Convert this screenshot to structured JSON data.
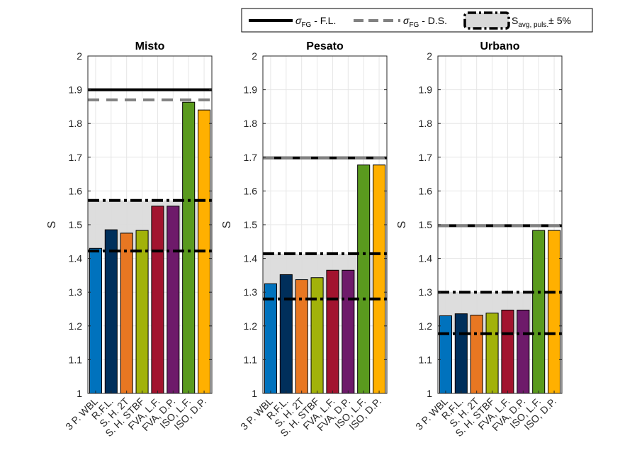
{
  "chart_data": [
    {
      "type": "bar",
      "title": "Misto",
      "ylabel": "S",
      "ylim": [
        1,
        2
      ],
      "yticks": [
        "1",
        "1.1",
        "1.2",
        "1.3",
        "1.4",
        "1.5",
        "1.6",
        "1.7",
        "1.8",
        "1.9",
        "2"
      ],
      "categories": [
        "3 P. WBL",
        "R.F.L.",
        "S. H. 2T",
        "S. H. STBF",
        "FVA, L.F.",
        "FVA, D.P.",
        "ISO, L.F.",
        "ISO, D.P."
      ],
      "values": [
        1.43,
        1.485,
        1.475,
        1.483,
        1.555,
        1.555,
        1.863,
        1.84
      ],
      "colors": [
        "#0072BD",
        "#002F5B",
        "#E87722",
        "#A2B20A",
        "#A2142F",
        "#6E1A6A",
        "#5A9A1E",
        "#FFB000"
      ],
      "sigma_fl": 1.9,
      "sigma_ds": 1.87,
      "band": [
        1.422,
        1.572
      ]
    },
    {
      "type": "bar",
      "title": "Pesato",
      "ylabel": "S",
      "ylim": [
        1,
        2
      ],
      "yticks": [
        "1",
        "1.1",
        "1.2",
        "1.3",
        "1.4",
        "1.5",
        "1.6",
        "1.7",
        "1.8",
        "1.9",
        "2"
      ],
      "categories": [
        "3 P. WBL",
        "R.F.L.",
        "S. H. 2T",
        "S. H. STBF",
        "FVA, L.F.",
        "FVA, D.P.",
        "ISO, L.F.",
        "ISO, D.P."
      ],
      "values": [
        1.325,
        1.352,
        1.337,
        1.343,
        1.365,
        1.365,
        1.677,
        1.677
      ],
      "colors": [
        "#0072BD",
        "#002F5B",
        "#E87722",
        "#A2B20A",
        "#A2142F",
        "#6E1A6A",
        "#5A9A1E",
        "#FFB000"
      ],
      "sigma_fl": 1.698,
      "sigma_ds": 1.698,
      "band": [
        1.28,
        1.414
      ]
    },
    {
      "type": "bar",
      "title": "Urbano",
      "ylabel": "S",
      "ylim": [
        1,
        2
      ],
      "yticks": [
        "1",
        "1.1",
        "1.2",
        "1.3",
        "1.4",
        "1.5",
        "1.6",
        "1.7",
        "1.8",
        "1.9",
        "2"
      ],
      "categories": [
        "3 P. WBL",
        "R.F.L.",
        "S. H. 2T",
        "S. H. STBF",
        "FVA, L.F.",
        "FVA, D.P.",
        "ISO, L.F.",
        "ISO, D.P."
      ],
      "values": [
        1.23,
        1.236,
        1.232,
        1.238,
        1.247,
        1.247,
        1.483,
        1.483
      ],
      "colors": [
        "#0072BD",
        "#002F5B",
        "#E87722",
        "#A2B20A",
        "#A2142F",
        "#6E1A6A",
        "#5A9A1E",
        "#FFB000"
      ],
      "sigma_fl": 1.497,
      "sigma_ds": 1.497,
      "band": [
        1.177,
        1.3
      ]
    }
  ],
  "legend": {
    "placement": "top-right",
    "fl": {
      "symbol": "σ",
      "sub": "FG",
      "suffix": " - F.L."
    },
    "ds": {
      "symbol": "σ",
      "sub": "FG",
      "suffix": " - D.S."
    },
    "band": {
      "main": "S",
      "sub": "avg, puls.",
      "suffix": "± 5%"
    }
  },
  "style": {
    "grid": true,
    "fl_color": "#000000",
    "ds_color": "#808080",
    "band_fill": "#d9d9d9"
  }
}
